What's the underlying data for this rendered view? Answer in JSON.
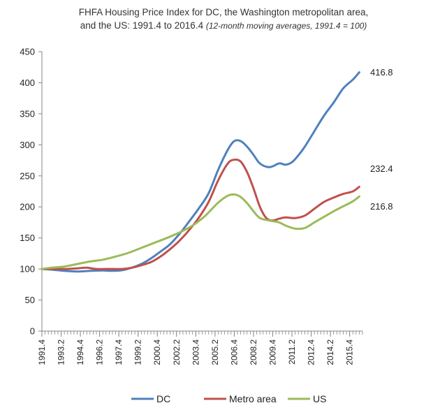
{
  "title": {
    "line1": "FHFA Housing Price Index for DC, the Washington metropolitan area,",
    "line2_main": "and the US: 1991.4  to 2016.4 ",
    "line2_note": "(12-month moving  averages, 1991.4 = 100)"
  },
  "chart_data": {
    "type": "line",
    "title": "FHFA Housing Price Index for DC, the Washington metropolitan area, and the US: 1991.4 to 2016.4 (12-month moving averages, 1991.4 = 100)",
    "xlabel": "",
    "ylabel": "",
    "ylim": [
      0,
      450
    ],
    "yticks": [
      0,
      50,
      100,
      150,
      200,
      250,
      300,
      350,
      400,
      450
    ],
    "xlim": [
      1991.75,
      2016.75
    ],
    "xtick_labels": [
      "1991.4",
      "1993.2",
      "1994.4",
      "1996.2",
      "1997.4",
      "1999.2",
      "2000.4",
      "2002.2",
      "2003.4",
      "2005.2",
      "2006.4",
      "2008.2",
      "2009.4",
      "2011.2",
      "2012.4",
      "2014.2",
      "2015.4"
    ],
    "xtick_positions": [
      1991.75,
      1993.25,
      1994.75,
      1996.25,
      1997.75,
      1999.25,
      2000.75,
      2002.25,
      2003.75,
      2005.25,
      2006.75,
      2008.25,
      2009.75,
      2011.25,
      2012.75,
      2014.25,
      2015.75
    ],
    "grid": false,
    "legend_position": "bottom",
    "series": [
      {
        "name": "DC",
        "color": "#4f81bd",
        "end_label": "416.8",
        "points": [
          [
            1991.75,
            100
          ],
          [
            1992.5,
            99
          ],
          [
            1993.5,
            97
          ],
          [
            1994.5,
            96
          ],
          [
            1995.5,
            97
          ],
          [
            1996.5,
            97.5
          ],
          [
            1997.25,
            97
          ],
          [
            1998,
            98
          ],
          [
            1998.75,
            102
          ],
          [
            1999.5,
            108
          ],
          [
            2000.25,
            117
          ],
          [
            2001,
            128
          ],
          [
            2001.75,
            140
          ],
          [
            2002.5,
            157
          ],
          [
            2003.25,
            177
          ],
          [
            2004,
            198
          ],
          [
            2004.75,
            222
          ],
          [
            2005.5,
            260
          ],
          [
            2006.25,
            292
          ],
          [
            2006.75,
            306
          ],
          [
            2007.25,
            306
          ],
          [
            2007.75,
            297
          ],
          [
            2008.25,
            284
          ],
          [
            2008.75,
            270
          ],
          [
            2009.5,
            264
          ],
          [
            2010.25,
            270
          ],
          [
            2010.75,
            268
          ],
          [
            2011.25,
            272
          ],
          [
            2011.75,
            283
          ],
          [
            2012.25,
            297
          ],
          [
            2013,
            322
          ],
          [
            2013.75,
            347
          ],
          [
            2014.5,
            368
          ],
          [
            2015.25,
            391
          ],
          [
            2016,
            405
          ],
          [
            2016.5,
            416.8
          ]
        ]
      },
      {
        "name": "Metro area",
        "color": "#c0504d",
        "end_label": "232.4",
        "points": [
          [
            1991.75,
            100
          ],
          [
            1992.5,
            100
          ],
          [
            1993.5,
            100
          ],
          [
            1994.5,
            101
          ],
          [
            1995.25,
            102
          ],
          [
            1996,
            100
          ],
          [
            1997,
            100
          ],
          [
            1998,
            100
          ],
          [
            1998.75,
            102
          ],
          [
            1999.5,
            106
          ],
          [
            2000.25,
            111
          ],
          [
            2001,
            120
          ],
          [
            2001.75,
            132
          ],
          [
            2002.5,
            146
          ],
          [
            2003.25,
            163
          ],
          [
            2004,
            183
          ],
          [
            2004.75,
            208
          ],
          [
            2005.5,
            243
          ],
          [
            2006.25,
            270
          ],
          [
            2006.75,
            276
          ],
          [
            2007.25,
            273
          ],
          [
            2007.75,
            256
          ],
          [
            2008.25,
            230
          ],
          [
            2008.75,
            200
          ],
          [
            2009.25,
            182
          ],
          [
            2009.75,
            178
          ],
          [
            2010.25,
            181
          ],
          [
            2010.75,
            183
          ],
          [
            2011.5,
            182
          ],
          [
            2012.25,
            186
          ],
          [
            2013,
            197
          ],
          [
            2013.75,
            208
          ],
          [
            2014.5,
            215
          ],
          [
            2015.25,
            221
          ],
          [
            2016,
            225
          ],
          [
            2016.5,
            232.4
          ]
        ]
      },
      {
        "name": "US",
        "color": "#9bbb59",
        "end_label": "216.8",
        "points": [
          [
            1991.75,
            100
          ],
          [
            1992.5,
            102
          ],
          [
            1993.5,
            104
          ],
          [
            1994.5,
            108
          ],
          [
            1995.5,
            112
          ],
          [
            1996.5,
            115
          ],
          [
            1997.5,
            120
          ],
          [
            1998.5,
            126
          ],
          [
            1999.5,
            134
          ],
          [
            2000.5,
            142
          ],
          [
            2001.5,
            150
          ],
          [
            2002.5,
            159
          ],
          [
            2003.5,
            170
          ],
          [
            2004.5,
            186
          ],
          [
            2005.5,
            207
          ],
          [
            2006.25,
            218
          ],
          [
            2006.75,
            220
          ],
          [
            2007.25,
            216
          ],
          [
            2007.75,
            206
          ],
          [
            2008.25,
            193
          ],
          [
            2008.75,
            182
          ],
          [
            2009.5,
            178
          ],
          [
            2010.25,
            175
          ],
          [
            2010.75,
            170
          ],
          [
            2011.5,
            165
          ],
          [
            2012.25,
            166
          ],
          [
            2013,
            175
          ],
          [
            2013.75,
            184
          ],
          [
            2014.5,
            193
          ],
          [
            2015.25,
            201
          ],
          [
            2016,
            209
          ],
          [
            2016.5,
            216.8
          ]
        ]
      }
    ]
  }
}
